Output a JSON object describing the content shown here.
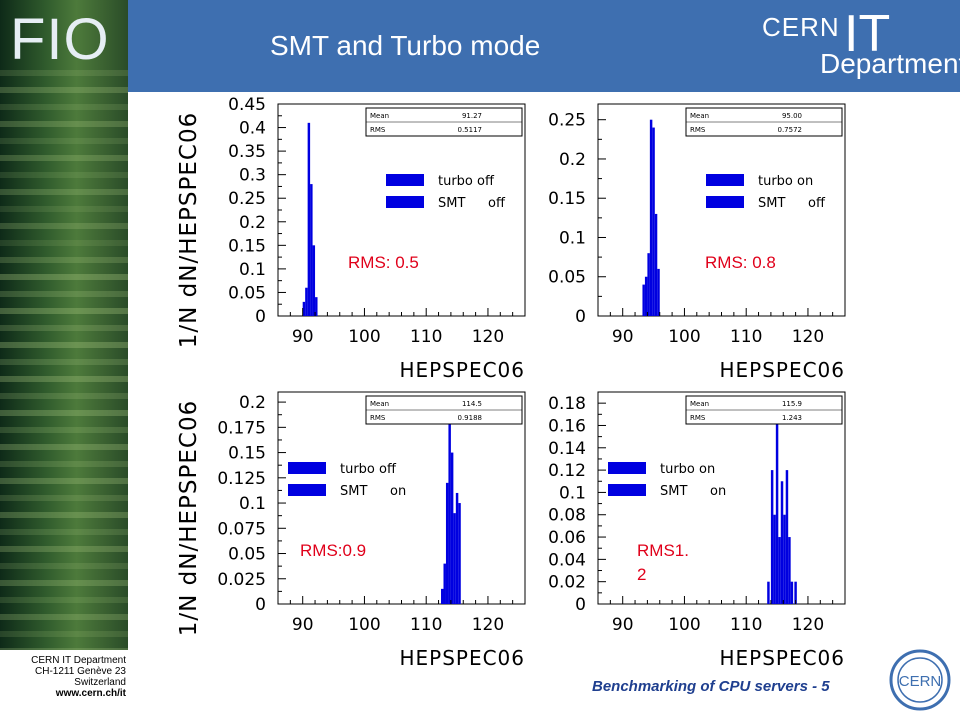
{
  "header": {
    "brand": "FIO",
    "title": "SMT and Turbo mode",
    "logo_cern": "CERN",
    "logo_it": "IT",
    "logo_dept": "Department"
  },
  "footer": {
    "address": [
      "CERN IT Department",
      "CH-1211 Genève 23",
      "Switzerland"
    ],
    "website": "www.cern.ch/it",
    "slide_label": "Benchmarking of CPU servers - 5",
    "badge_text": "CERN"
  },
  "colors": {
    "header_blue": "#3e6fb0",
    "bars": "#0000e0",
    "rms_red": "#e0001a",
    "footer_text": "#1f3f8f"
  },
  "chart_data": [
    {
      "type": "bar",
      "xlabel": "HEPSPEC06",
      "ylabel": "1/N dN/HEPSPEC06",
      "xlim": [
        86,
        126
      ],
      "ylim": [
        0,
        0.45
      ],
      "yticks": [
        "0",
        "0.05",
        "0.1",
        "0.15",
        "0.2",
        "0.25",
        "0.3",
        "0.35",
        "0.4",
        "0.45"
      ],
      "yticks_val": [
        0,
        0.05,
        0.1,
        0.15,
        0.2,
        0.25,
        0.3,
        0.35,
        0.4,
        0.45
      ],
      "xticks": [
        "90",
        "100",
        "110",
        "120"
      ],
      "xticks_val": [
        90,
        100,
        110,
        120
      ],
      "stats": {
        "mean_label": "Mean",
        "mean": "91.27",
        "rms_label": "RMS",
        "rms": "0.5117"
      },
      "legend": [
        {
          "label": "turbo off"
        },
        {
          "label": "SMT",
          "state": "off"
        }
      ],
      "legend_pos": "right",
      "annotation": "RMS: 0.5",
      "bins": [
        {
          "x": 90.2,
          "y": 0.03
        },
        {
          "x": 90.6,
          "y": 0.06
        },
        {
          "x": 91.0,
          "y": 0.41
        },
        {
          "x": 91.4,
          "y": 0.28
        },
        {
          "x": 91.8,
          "y": 0.15
        },
        {
          "x": 92.2,
          "y": 0.04
        }
      ]
    },
    {
      "type": "bar",
      "xlabel": "HEPSPEC06",
      "ylabel": "",
      "xlim": [
        86,
        126
      ],
      "ylim": [
        0,
        0.27
      ],
      "yticks": [
        "0",
        "0.05",
        "0.1",
        "0.15",
        "0.2",
        "0.25"
      ],
      "yticks_val": [
        0,
        0.05,
        0.1,
        0.15,
        0.2,
        0.25
      ],
      "xticks": [
        "90",
        "100",
        "110",
        "120"
      ],
      "xticks_val": [
        90,
        100,
        110,
        120
      ],
      "stats": {
        "mean_label": "Mean",
        "mean": "95.00",
        "rms_label": "RMS",
        "rms": "0.7572"
      },
      "legend": [
        {
          "label": "turbo on"
        },
        {
          "label": "SMT",
          "state": "off"
        }
      ],
      "legend_pos": "right",
      "annotation": "RMS: 0.8",
      "bins": [
        {
          "x": 93.4,
          "y": 0.04
        },
        {
          "x": 93.8,
          "y": 0.05
        },
        {
          "x": 94.2,
          "y": 0.08
        },
        {
          "x": 94.6,
          "y": 0.25
        },
        {
          "x": 95.0,
          "y": 0.24
        },
        {
          "x": 95.4,
          "y": 0.13
        },
        {
          "x": 95.8,
          "y": 0.06
        }
      ]
    },
    {
      "type": "bar",
      "xlabel": "HEPSPEC06",
      "ylabel": "1/N dN/HEPSPEC06",
      "xlim": [
        86,
        126
      ],
      "ylim": [
        0,
        0.21
      ],
      "yticks": [
        "0",
        "0.025",
        "0.05",
        "0.075",
        "0.1",
        "0.125",
        "0.15",
        "0.175",
        "0.2"
      ],
      "yticks_val": [
        0,
        0.025,
        0.05,
        0.075,
        0.1,
        0.125,
        0.15,
        0.175,
        0.2
      ],
      "xticks": [
        "90",
        "100",
        "110",
        "120"
      ],
      "xticks_val": [
        90,
        100,
        110,
        120
      ],
      "stats": {
        "mean_label": "Mean",
        "mean": "114.5",
        "rms_label": "RMS",
        "rms": "0.9188"
      },
      "legend": [
        {
          "label": "turbo off"
        },
        {
          "label": "SMT",
          "state": "on"
        }
      ],
      "legend_pos": "left",
      "annotation": "RMS:0.9",
      "bins": [
        {
          "x": 112.6,
          "y": 0.015
        },
        {
          "x": 113.0,
          "y": 0.04
        },
        {
          "x": 113.4,
          "y": 0.12
        },
        {
          "x": 113.8,
          "y": 0.2
        },
        {
          "x": 114.2,
          "y": 0.15
        },
        {
          "x": 114.6,
          "y": 0.09
        },
        {
          "x": 115.0,
          "y": 0.11
        },
        {
          "x": 115.4,
          "y": 0.1
        }
      ]
    },
    {
      "type": "bar",
      "xlabel": "HEPSPEC06",
      "ylabel": "",
      "xlim": [
        86,
        126
      ],
      "ylim": [
        0,
        0.19
      ],
      "yticks": [
        "0",
        "0.02",
        "0.04",
        "0.06",
        "0.08",
        "0.1",
        "0.12",
        "0.14",
        "0.16",
        "0.18"
      ],
      "yticks_val": [
        0,
        0.02,
        0.04,
        0.06,
        0.08,
        0.1,
        0.12,
        0.14,
        0.16,
        0.18
      ],
      "xticks": [
        "90",
        "100",
        "110",
        "120"
      ],
      "xticks_val": [
        90,
        100,
        110,
        120
      ],
      "stats": {
        "mean_label": "Mean",
        "mean": "115.9",
        "rms_label": "RMS",
        "rms": "1.243"
      },
      "legend": [
        {
          "label": "turbo on"
        },
        {
          "label": "SMT",
          "state": "on"
        }
      ],
      "legend_pos": "left",
      "annotation": "RMS1.\n2",
      "annotation_lines": [
        "RMS1.",
        "2"
      ],
      "bins": [
        {
          "x": 113.6,
          "y": 0.02
        },
        {
          "x": 114.2,
          "y": 0.12
        },
        {
          "x": 114.6,
          "y": 0.08
        },
        {
          "x": 115.0,
          "y": 0.18
        },
        {
          "x": 115.4,
          "y": 0.06
        },
        {
          "x": 115.8,
          "y": 0.11
        },
        {
          "x": 116.2,
          "y": 0.08
        },
        {
          "x": 116.6,
          "y": 0.12
        },
        {
          "x": 117.0,
          "y": 0.06
        },
        {
          "x": 117.4,
          "y": 0.02
        },
        {
          "x": 118.0,
          "y": 0.02
        }
      ]
    }
  ]
}
